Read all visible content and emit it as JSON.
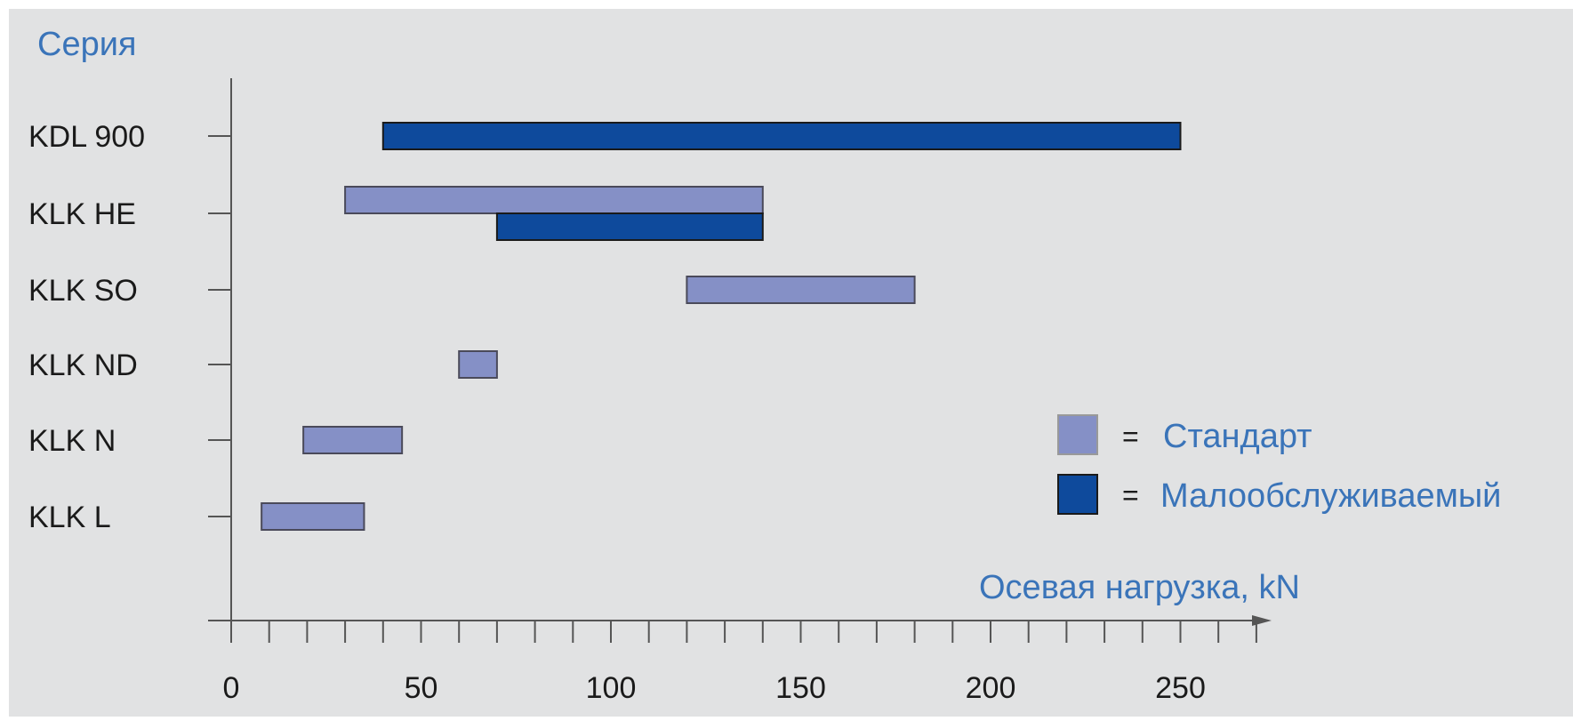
{
  "chart_data": {
    "type": "bar",
    "orientation": "horizontal",
    "subtype": "range",
    "ylabel": "Серия",
    "xlabel": "Осевая нагрузка, kN",
    "categories": [
      "KDL 900",
      "KLK HE",
      "KLK SO",
      "KLK ND",
      "KLK N",
      "KLK L"
    ],
    "xlim": [
      0,
      275
    ],
    "x_ticks": [
      0,
      50,
      100,
      150,
      200,
      250
    ],
    "x_minor_step": 10,
    "legend_placement": "right",
    "series": [
      {
        "name": "Стандарт",
        "color": "#8590c6",
        "ranges": [
          {
            "category": "KLK HE",
            "start": 30,
            "end": 140
          },
          {
            "category": "KLK SO",
            "start": 120,
            "end": 180
          },
          {
            "category": "KLK ND",
            "start": 60,
            "end": 70
          },
          {
            "category": "KLK N",
            "start": 19,
            "end": 45
          },
          {
            "category": "KLK L",
            "start": 8,
            "end": 35
          }
        ]
      },
      {
        "name": "Малообслуживаемый",
        "color": "#0e4a9c",
        "ranges": [
          {
            "category": "KDL 900",
            "start": 40,
            "end": 250
          },
          {
            "category": "KLK HE",
            "start": 70,
            "end": 140
          }
        ]
      }
    ],
    "legend": {
      "separator": "=",
      "entries": [
        "Стандарт",
        "Малообслуживаемый"
      ]
    }
  }
}
